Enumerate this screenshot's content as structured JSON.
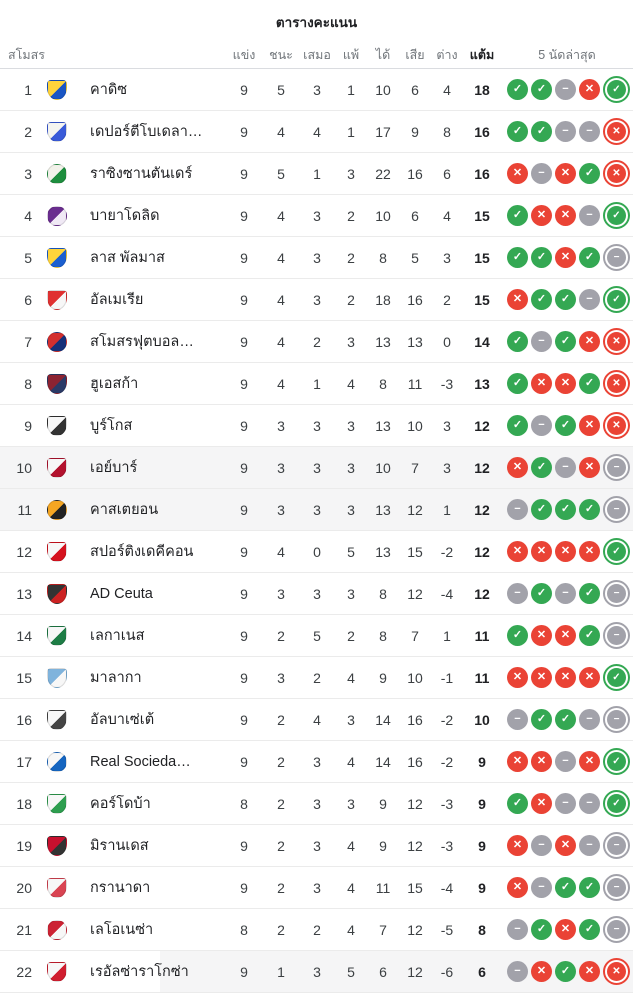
{
  "title": "ตารางคะแนน",
  "columns": {
    "club": "สโมสร",
    "played": "แข่ง",
    "won": "ชนะ",
    "drawn": "เสมอ",
    "lost": "แพ้",
    "gf": "ได้",
    "ga": "เสีย",
    "gd": "ต่าง",
    "pts": "แต้ม",
    "form": "5 นัดล่าสุด"
  },
  "colors": {
    "win": "#34a853",
    "draw": "#a2a2aa",
    "loss": "#ea4335",
    "row_highlight": "#f5f5f6"
  },
  "form_glyphs": {
    "w": "✓",
    "d": "−",
    "l": "✕"
  },
  "rows": [
    {
      "rank": "1",
      "name": "คาดิซ",
      "crest": {
        "shape": "shield",
        "c1": "#ffd43b",
        "c2": "#1a56c4"
      },
      "played": "9",
      "won": "5",
      "drawn": "3",
      "lost": "1",
      "gf": "10",
      "ga": "6",
      "gd": "4",
      "pts": "18",
      "form": [
        "w",
        "w",
        "d",
        "l",
        "w"
      ],
      "highlight": "none"
    },
    {
      "rank": "2",
      "name": "เดปอร์ตีโบเดลา…",
      "crest": {
        "shape": "shield",
        "c1": "#f5f5f0",
        "c2": "#3a5bd9"
      },
      "played": "9",
      "won": "4",
      "drawn": "4",
      "lost": "1",
      "gf": "17",
      "ga": "9",
      "gd": "8",
      "pts": "16",
      "form": [
        "w",
        "w",
        "d",
        "d",
        "l"
      ],
      "highlight": "none"
    },
    {
      "rank": "3",
      "name": "ราซิงซานตันเดร์",
      "crest": {
        "shape": "circle",
        "c1": "#f2f2ea",
        "c2": "#1e8e3e"
      },
      "played": "9",
      "won": "5",
      "drawn": "1",
      "lost": "3",
      "gf": "22",
      "ga": "16",
      "gd": "6",
      "pts": "16",
      "form": [
        "l",
        "d",
        "l",
        "w",
        "l"
      ],
      "highlight": "none"
    },
    {
      "rank": "4",
      "name": "บายาโดลิด",
      "crest": {
        "shape": "circle",
        "c1": "#6a2d8f",
        "c2": "#f0e9f5"
      },
      "played": "9",
      "won": "4",
      "drawn": "3",
      "lost": "2",
      "gf": "10",
      "ga": "6",
      "gd": "4",
      "pts": "15",
      "form": [
        "w",
        "l",
        "l",
        "d",
        "w"
      ],
      "highlight": "none"
    },
    {
      "rank": "5",
      "name": "ลาส พัลมาส",
      "crest": {
        "shape": "shield",
        "c1": "#ffd43b",
        "c2": "#1b5fd0"
      },
      "played": "9",
      "won": "4",
      "drawn": "3",
      "lost": "2",
      "gf": "8",
      "ga": "5",
      "gd": "3",
      "pts": "15",
      "form": [
        "w",
        "w",
        "l",
        "w",
        "d"
      ],
      "highlight": "none"
    },
    {
      "rank": "6",
      "name": "อัลเมเรีย",
      "crest": {
        "shape": "shield",
        "c1": "#e03131",
        "c2": "#f7f7f7"
      },
      "played": "9",
      "won": "4",
      "drawn": "3",
      "lost": "2",
      "gf": "18",
      "ga": "16",
      "gd": "2",
      "pts": "15",
      "form": [
        "l",
        "w",
        "w",
        "d",
        "w"
      ],
      "highlight": "none"
    },
    {
      "rank": "7",
      "name": "สโมสรฟุตบอล…",
      "crest": {
        "shape": "circle",
        "c1": "#d32f2f",
        "c2": "#16307a"
      },
      "played": "9",
      "won": "4",
      "drawn": "2",
      "lost": "3",
      "gf": "13",
      "ga": "13",
      "gd": "0",
      "pts": "14",
      "form": [
        "w",
        "d",
        "w",
        "l",
        "l"
      ],
      "highlight": "none"
    },
    {
      "rank": "8",
      "name": "ฮูเอสก้า",
      "crest": {
        "shape": "shield",
        "c1": "#8c2332",
        "c2": "#2b3a67"
      },
      "played": "9",
      "won": "4",
      "drawn": "1",
      "lost": "4",
      "gf": "8",
      "ga": "11",
      "gd": "-3",
      "pts": "13",
      "form": [
        "w",
        "l",
        "l",
        "w",
        "l"
      ],
      "highlight": "none"
    },
    {
      "rank": "9",
      "name": "บูร์โกส",
      "crest": {
        "shape": "shield",
        "c1": "#f7f7f7",
        "c2": "#333333"
      },
      "played": "9",
      "won": "3",
      "drawn": "3",
      "lost": "3",
      "gf": "13",
      "ga": "10",
      "gd": "3",
      "pts": "12",
      "form": [
        "w",
        "d",
        "w",
        "l",
        "l"
      ],
      "highlight": "none"
    },
    {
      "rank": "10",
      "name": "เอย์บาร์",
      "crest": {
        "shape": "shield",
        "c1": "#f7f7f7",
        "c2": "#b3122e"
      },
      "played": "9",
      "won": "3",
      "drawn": "3",
      "lost": "3",
      "gf": "10",
      "ga": "7",
      "gd": "3",
      "pts": "12",
      "form": [
        "l",
        "w",
        "d",
        "l",
        "d"
      ],
      "highlight": "full"
    },
    {
      "rank": "11",
      "name": "คาสเตยอน",
      "crest": {
        "shape": "circle",
        "c1": "#f5a623",
        "c2": "#222222"
      },
      "played": "9",
      "won": "3",
      "drawn": "3",
      "lost": "3",
      "gf": "13",
      "ga": "12",
      "gd": "1",
      "pts": "12",
      "form": [
        "d",
        "w",
        "w",
        "w",
        "d"
      ],
      "highlight": "full"
    },
    {
      "rank": "12",
      "name": "สปอร์ติงเดคีคอน",
      "crest": {
        "shape": "shield",
        "c1": "#f7f7f7",
        "c2": "#d5121e"
      },
      "played": "9",
      "won": "4",
      "drawn": "0",
      "lost": "5",
      "gf": "13",
      "ga": "15",
      "gd": "-2",
      "pts": "12",
      "form": [
        "l",
        "l",
        "l",
        "l",
        "w"
      ],
      "highlight": "none"
    },
    {
      "rank": "13",
      "name": "AD Ceuta",
      "crest": {
        "shape": "shield",
        "c1": "#333333",
        "c2": "#cc2222"
      },
      "played": "9",
      "won": "3",
      "drawn": "3",
      "lost": "3",
      "gf": "8",
      "ga": "12",
      "gd": "-4",
      "pts": "12",
      "form": [
        "d",
        "w",
        "d",
        "w",
        "d"
      ],
      "highlight": "none"
    },
    {
      "rank": "14",
      "name": "เลกาเนส",
      "crest": {
        "shape": "shield",
        "c1": "#f7f7f7",
        "c2": "#1e7d46"
      },
      "played": "9",
      "won": "2",
      "drawn": "5",
      "lost": "2",
      "gf": "8",
      "ga": "7",
      "gd": "1",
      "pts": "11",
      "form": [
        "w",
        "l",
        "l",
        "w",
        "d"
      ],
      "highlight": "none"
    },
    {
      "rank": "15",
      "name": "มาลากา",
      "crest": {
        "shape": "shield",
        "c1": "#7fb3dc",
        "c2": "#f7f7f7"
      },
      "played": "9",
      "won": "3",
      "drawn": "2",
      "lost": "4",
      "gf": "9",
      "ga": "10",
      "gd": "-1",
      "pts": "11",
      "form": [
        "l",
        "l",
        "l",
        "l",
        "w"
      ],
      "highlight": "none"
    },
    {
      "rank": "16",
      "name": "อัลบาเซ่เต้",
      "crest": {
        "shape": "shield",
        "c1": "#f7f7f7",
        "c2": "#444444"
      },
      "played": "9",
      "won": "2",
      "drawn": "4",
      "lost": "3",
      "gf": "14",
      "ga": "16",
      "gd": "-2",
      "pts": "10",
      "form": [
        "d",
        "w",
        "w",
        "d",
        "d"
      ],
      "highlight": "none"
    },
    {
      "rank": "17",
      "name": "Real Socieda…",
      "crest": {
        "shape": "circle",
        "c1": "#f7f7f7",
        "c2": "#1565c0"
      },
      "played": "9",
      "won": "2",
      "drawn": "3",
      "lost": "4",
      "gf": "14",
      "ga": "16",
      "gd": "-2",
      "pts": "9",
      "form": [
        "l",
        "l",
        "d",
        "l",
        "w"
      ],
      "highlight": "none"
    },
    {
      "rank": "18",
      "name": "คอร์โดบ้า",
      "crest": {
        "shape": "shield",
        "c1": "#f7f7f7",
        "c2": "#2e9e4f"
      },
      "played": "8",
      "won": "2",
      "drawn": "3",
      "lost": "3",
      "gf": "9",
      "ga": "12",
      "gd": "-3",
      "pts": "9",
      "form": [
        "w",
        "l",
        "d",
        "d",
        "w"
      ],
      "highlight": "none"
    },
    {
      "rank": "19",
      "name": "มิรานเดส",
      "crest": {
        "shape": "shield",
        "c1": "#c8102e",
        "c2": "#333333"
      },
      "played": "9",
      "won": "2",
      "drawn": "3",
      "lost": "4",
      "gf": "9",
      "ga": "12",
      "gd": "-3",
      "pts": "9",
      "form": [
        "l",
        "d",
        "l",
        "d",
        "d"
      ],
      "highlight": "none"
    },
    {
      "rank": "20",
      "name": "กรานาดา",
      "crest": {
        "shape": "shield",
        "c1": "#f7f7f7",
        "c2": "#d94452"
      },
      "played": "9",
      "won": "2",
      "drawn": "3",
      "lost": "4",
      "gf": "11",
      "ga": "15",
      "gd": "-4",
      "pts": "9",
      "form": [
        "l",
        "d",
        "w",
        "w",
        "d"
      ],
      "highlight": "none"
    },
    {
      "rank": "21",
      "name": "เลโอเนซ่า",
      "crest": {
        "shape": "circle",
        "c1": "#cc2233",
        "c2": "#f7f7f7"
      },
      "played": "8",
      "won": "2",
      "drawn": "2",
      "lost": "4",
      "gf": "7",
      "ga": "12",
      "gd": "-5",
      "pts": "8",
      "form": [
        "d",
        "w",
        "l",
        "w",
        "d"
      ],
      "highlight": "none"
    },
    {
      "rank": "22",
      "name": "เรอัลซ่าราโกซ่า",
      "crest": {
        "shape": "shield",
        "c1": "#f7f7f7",
        "c2": "#d01e2f"
      },
      "played": "9",
      "won": "1",
      "drawn": "3",
      "lost": "5",
      "gf": "6",
      "ga": "12",
      "gd": "-6",
      "pts": "6",
      "form": [
        "d",
        "l",
        "w",
        "l",
        "l"
      ],
      "highlight": "partial"
    }
  ]
}
